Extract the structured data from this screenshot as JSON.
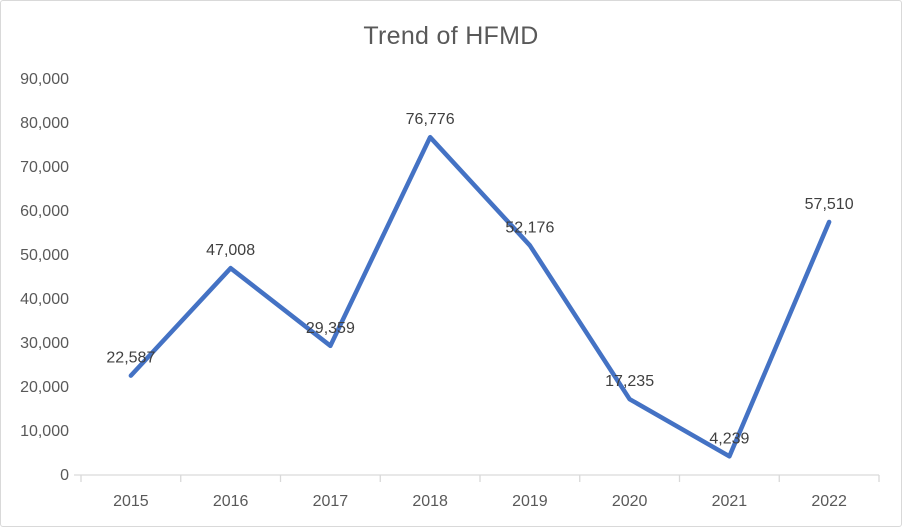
{
  "chart_data": {
    "type": "line",
    "title": "Trend of HFMD",
    "categories": [
      "2015",
      "2016",
      "2017",
      "2018",
      "2019",
      "2020",
      "2021",
      "2022"
    ],
    "values": [
      22587,
      47008,
      29359,
      76776,
      52176,
      17235,
      4239,
      57510
    ],
    "data_labels": [
      "22,587",
      "47,008",
      "29,359",
      "76,776",
      "52,176",
      "17,235",
      "4,239",
      "57,510"
    ],
    "xlabel": "",
    "ylabel": "",
    "ylim": [
      0,
      90000
    ],
    "ytick_step": 10000,
    "ytick_labels": [
      "0",
      "10,000",
      "20,000",
      "30,000",
      "40,000",
      "50,000",
      "60,000",
      "70,000",
      "80,000",
      "90,000"
    ],
    "grid": false,
    "legend": "none",
    "marker": "none",
    "colors": {
      "line": "#4472C4",
      "title_text": "#595959",
      "axis_text": "#595959",
      "label_text": "#404040",
      "axis_line": "#D9D9D9",
      "border": "#D9D9D9",
      "background": "#FFFFFF"
    }
  }
}
